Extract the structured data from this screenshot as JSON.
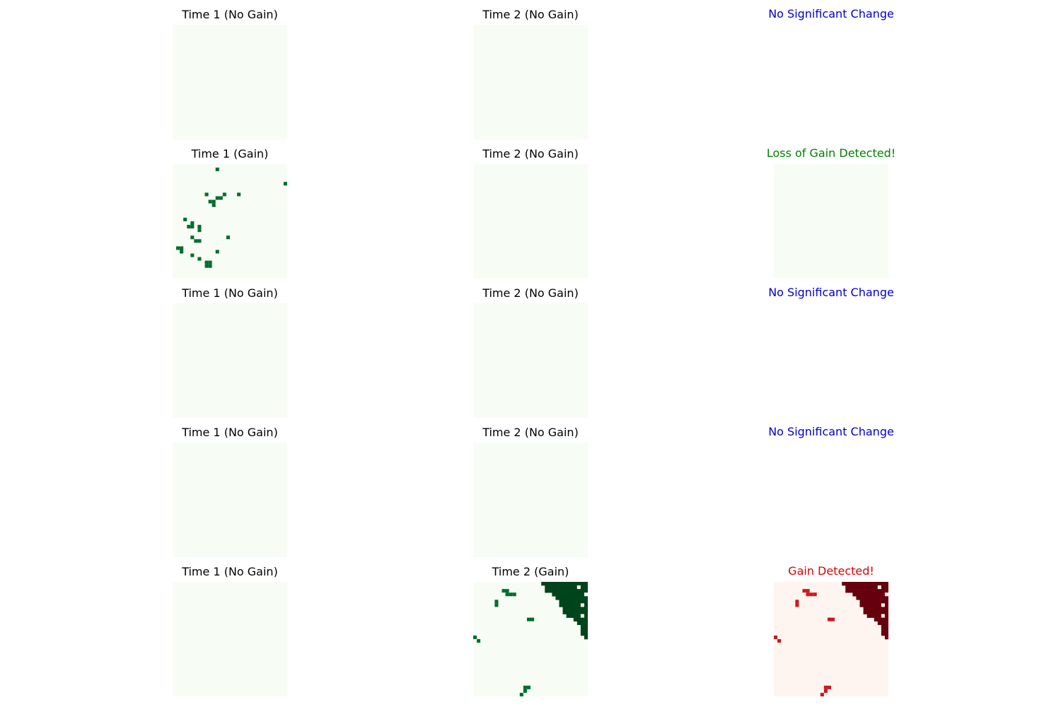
{
  "colors": {
    "time_background": "#f7fcf5",
    "time_pixel": "#006d2c",
    "time_pixel_dense": "#00441b",
    "gain_background": "#fff5f0",
    "gain_pixel": "#67000d",
    "gain_pixel_light": "#cb181d",
    "status_no_change": "#0000cc",
    "status_loss": "#008000",
    "status_gain": "#dd0000",
    "title_default": "#000000"
  },
  "rows": [
    {
      "time1": {
        "title": "Time 1 (No Gain)",
        "pixels": []
      },
      "time2": {
        "title": "Time 2 (No Gain)",
        "pixels": []
      },
      "result": {
        "title": "No Significant Change",
        "status": "no_change",
        "show_map": false,
        "pixels": []
      }
    },
    {
      "time1": {
        "title": "Time 1 (Gain)",
        "pixels": [
          [
            1,
            12
          ],
          [
            5,
            31
          ],
          [
            5,
            32
          ],
          [
            8,
            9
          ],
          [
            8,
            14
          ],
          [
            8,
            18
          ],
          [
            9,
            12
          ],
          [
            9,
            13
          ],
          [
            10,
            10
          ],
          [
            10,
            11
          ],
          [
            11,
            11
          ],
          [
            15,
            3
          ],
          [
            16,
            5
          ],
          [
            17,
            4
          ],
          [
            17,
            5
          ],
          [
            17,
            7
          ],
          [
            18,
            7
          ],
          [
            20,
            5
          ],
          [
            20,
            15
          ],
          [
            21,
            6
          ],
          [
            21,
            7
          ],
          [
            23,
            1
          ],
          [
            23,
            2
          ],
          [
            24,
            2
          ],
          [
            24,
            12
          ],
          [
            25,
            5
          ],
          [
            26,
            7
          ],
          [
            27,
            9
          ],
          [
            27,
            10
          ],
          [
            28,
            9
          ],
          [
            28,
            10
          ]
        ]
      },
      "time2": {
        "title": "Time 2 (No Gain)",
        "pixels": []
      },
      "result": {
        "title": "Loss of Gain Detected!",
        "status": "loss",
        "show_map": true,
        "pixels": []
      }
    },
    {
      "time1": {
        "title": "Time 1 (No Gain)",
        "pixels": []
      },
      "time2": {
        "title": "Time 2 (No Gain)",
        "pixels": []
      },
      "result": {
        "title": "No Significant Change",
        "status": "no_change",
        "show_map": false,
        "pixels": []
      }
    },
    {
      "time1": {
        "title": "Time 1 (No Gain)",
        "pixels": []
      },
      "time2": {
        "title": "Time 2 (No Gain)",
        "pixels": []
      },
      "result": {
        "title": "No Significant Change",
        "status": "no_change",
        "show_map": false,
        "pixels": []
      }
    },
    {
      "time1": {
        "title": "Time 1 (No Gain)",
        "pixels": []
      },
      "time2": {
        "title": "Time 2 (Gain)",
        "region": "top-right",
        "pixels": [
          [
            2,
            8
          ],
          [
            2,
            9
          ],
          [
            3,
            9
          ],
          [
            3,
            10
          ],
          [
            3,
            11
          ],
          [
            5,
            6
          ],
          [
            6,
            6
          ],
          [
            10,
            15
          ],
          [
            10,
            16
          ],
          [
            15,
            0
          ],
          [
            16,
            1
          ],
          [
            29,
            14
          ],
          [
            29,
            15
          ],
          [
            30,
            14
          ],
          [
            31,
            13
          ]
        ]
      },
      "result": {
        "title": "Gain Detected!",
        "status": "gain",
        "show_map": true,
        "region": "top-right",
        "pixels": [
          [
            2,
            8
          ],
          [
            2,
            9
          ],
          [
            3,
            9
          ],
          [
            3,
            10
          ],
          [
            3,
            11
          ],
          [
            5,
            6
          ],
          [
            6,
            6
          ],
          [
            10,
            15
          ],
          [
            10,
            16
          ],
          [
            15,
            0
          ],
          [
            16,
            1
          ],
          [
            29,
            14
          ],
          [
            29,
            15
          ],
          [
            30,
            14
          ],
          [
            31,
            13
          ]
        ]
      }
    }
  ]
}
